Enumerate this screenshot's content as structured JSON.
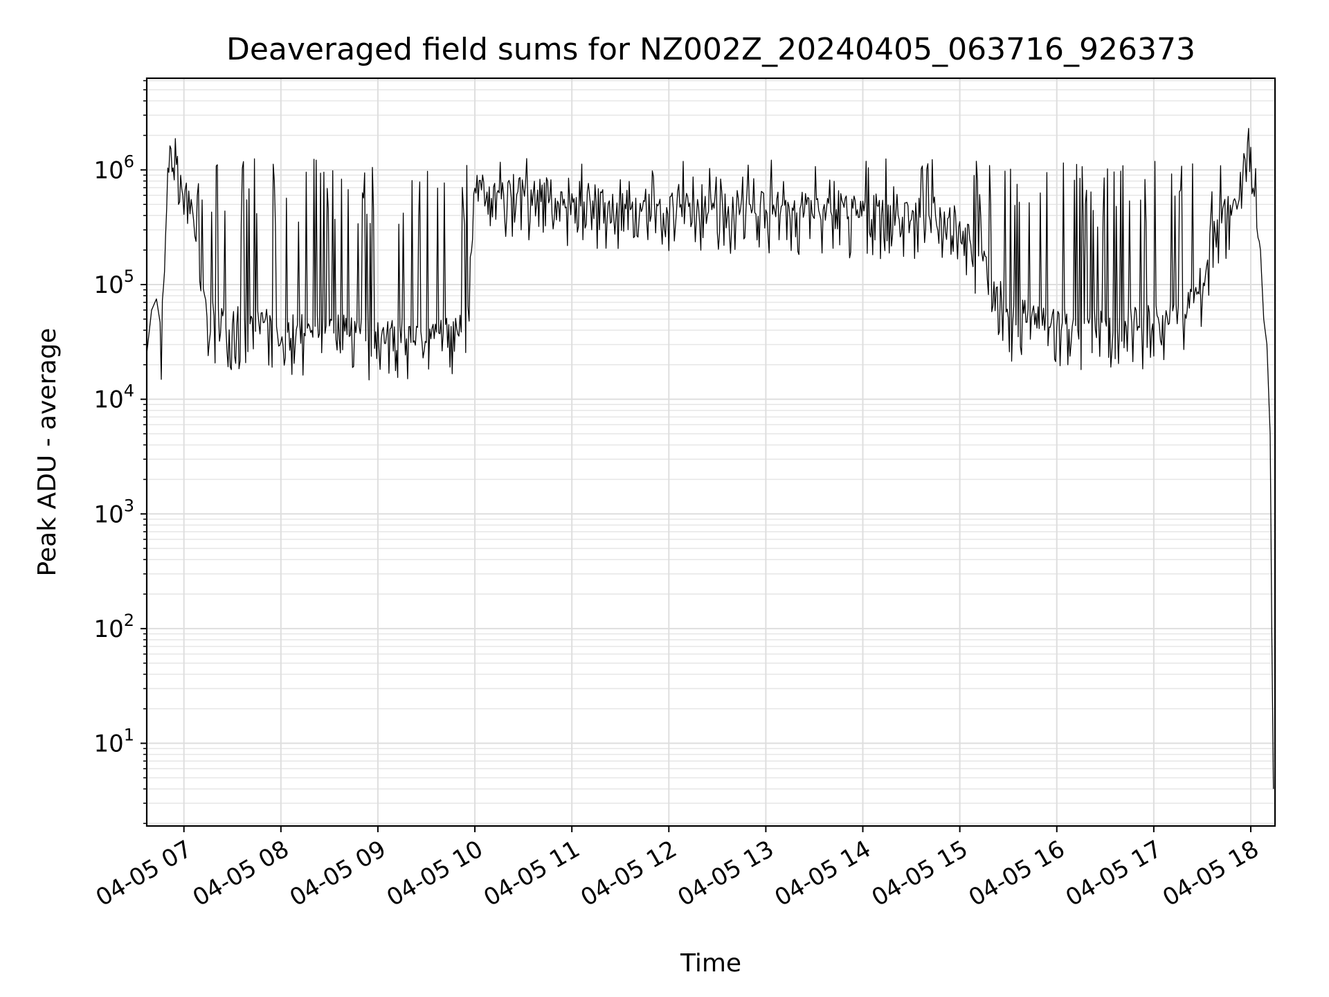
{
  "chart_data": {
    "type": "line",
    "title": "Deaveraged field sums for NZ002Z_20240405_063716_926373",
    "xlabel": "Time",
    "ylabel": "Peak ADU - average",
    "x_unit": "hours on 2024-04-05",
    "xlim": [
      "2024-04-05 06:37",
      "2024-04-05 18:15"
    ],
    "ylim": [
      1.9,
      6300000
    ],
    "yscale": "log",
    "grid": true,
    "color": "#000000",
    "x_ticks": [
      {
        "value": "2024-04-05 07:00",
        "label": "04-05 07"
      },
      {
        "value": "2024-04-05 08:00",
        "label": "04-05 08"
      },
      {
        "value": "2024-04-05 09:00",
        "label": "04-05 09"
      },
      {
        "value": "2024-04-05 10:00",
        "label": "04-05 10"
      },
      {
        "value": "2024-04-05 11:00",
        "label": "04-05 11"
      },
      {
        "value": "2024-04-05 12:00",
        "label": "04-05 12"
      },
      {
        "value": "2024-04-05 13:00",
        "label": "04-05 13"
      },
      {
        "value": "2024-04-05 14:00",
        "label": "04-05 14"
      },
      {
        "value": "2024-04-05 15:00",
        "label": "04-05 15"
      },
      {
        "value": "2024-04-05 16:00",
        "label": "04-05 16"
      },
      {
        "value": "2024-04-05 17:00",
        "label": "04-05 17"
      },
      {
        "value": "2024-04-05 18:00",
        "label": "04-05 18"
      }
    ],
    "y_ticks": [
      {
        "value": 10,
        "base": "10",
        "exp": "1"
      },
      {
        "value": 100,
        "base": "10",
        "exp": "2"
      },
      {
        "value": 1000,
        "base": "10",
        "exp": "3"
      },
      {
        "value": 10000,
        "base": "10",
        "exp": "4"
      },
      {
        "value": 100000,
        "base": "10",
        "exp": "5"
      },
      {
        "value": 1000000,
        "base": "10",
        "exp": "6"
      }
    ],
    "series": [
      {
        "color": "#000000",
        "x": [
          "2024-04-05 06:37",
          "2024-04-05 06:40",
          "2024-04-05 06:43",
          "2024-04-05 06:46",
          "2024-04-05 06:48",
          "2024-04-05 06:50",
          "2024-04-05 06:52",
          "2024-04-05 06:54",
          "2024-04-05 06:56",
          "2024-04-05 06:58",
          "2024-04-05 07:00",
          "2024-04-05 07:03",
          "2024-04-05 07:06",
          "2024-04-05 07:09",
          "2024-04-05 07:12",
          "2024-04-05 07:15",
          "2024-04-05 07:20",
          "2024-04-05 07:30",
          "2024-04-05 07:45",
          "2024-04-05 08:00",
          "2024-04-05 08:30",
          "2024-04-05 09:00",
          "2024-04-05 09:30",
          "2024-04-05 09:55",
          "2024-04-05 10:00",
          "2024-04-05 10:30",
          "2024-04-05 11:00",
          "2024-04-05 11:30",
          "2024-04-05 12:00",
          "2024-04-05 12:30",
          "2024-04-05 13:00",
          "2024-04-05 13:30",
          "2024-04-05 14:00",
          "2024-04-05 14:30",
          "2024-04-05 15:00",
          "2024-04-05 15:30",
          "2024-04-05 16:00",
          "2024-04-05 16:30",
          "2024-04-05 17:00",
          "2024-04-05 17:20",
          "2024-04-05 17:30",
          "2024-04-05 17:40",
          "2024-04-05 17:50",
          "2024-04-05 17:55",
          "2024-04-05 17:58",
          "2024-04-05 18:00",
          "2024-04-05 18:03",
          "2024-04-05 18:06",
          "2024-04-05 18:08",
          "2024-04-05 18:10",
          "2024-04-05 18:12",
          "2024-04-05 18:13",
          "2024-04-05 18:14"
        ],
        "y": [
          25000,
          60000,
          75000,
          40000,
          150000,
          900000,
          1500000,
          2500000,
          1200000,
          800000,
          700000,
          600000,
          350000,
          120000,
          80000,
          60000,
          55000,
          50000,
          48000,
          45000,
          42000,
          40000,
          38000,
          45000,
          700000,
          650000,
          600000,
          550000,
          500000,
          520000,
          500000,
          480000,
          470000,
          460000,
          400000,
          60000,
          50000,
          50000,
          50000,
          60000,
          120000,
          400000,
          500000,
          900000,
          2000000,
          1500000,
          800000,
          200000,
          50000,
          30000,
          5000,
          100,
          4
        ]
      }
    ]
  }
}
